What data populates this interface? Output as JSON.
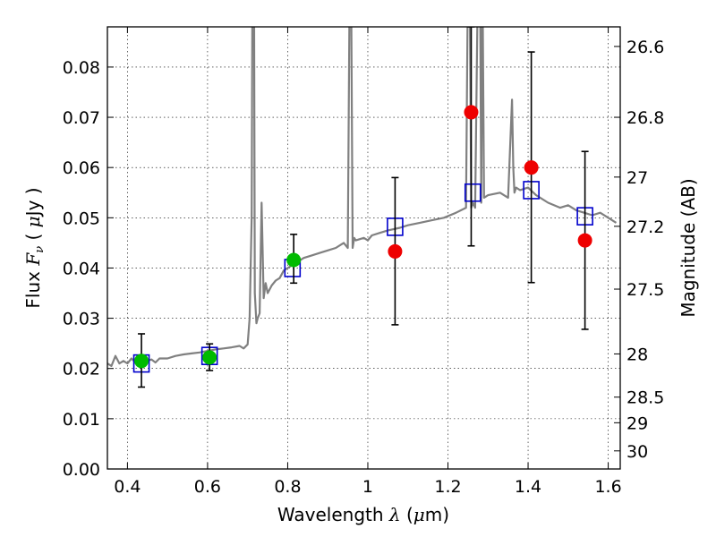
{
  "chart_data": {
    "type": "scatter",
    "title": "",
    "xlabel_text": "Wavelength",
    "xlabel_symbol": "λ",
    "xlabel_unit_prefix": " (",
    "xlabel_unit_mu": "μ",
    "xlabel_unit": "m)",
    "ylabel_text": "Flux",
    "ylabel_symbol": "F",
    "ylabel_symbol_sub": "ν",
    "ylabel_unit_prefix": "  ( ",
    "ylabel_unit_mu": "μ",
    "ylabel_unit": "Jy )",
    "y2label": "Magnitude (AB)",
    "xlim": [
      0.35,
      1.63
    ],
    "ylim": [
      0.0,
      0.088
    ],
    "grid": true,
    "x_ticks": [
      0.4,
      0.6,
      0.8,
      1.0,
      1.2,
      1.4,
      1.6
    ],
    "x_tick_labels": [
      "0.4",
      "0.6",
      "0.8",
      "1",
      "1.2",
      "1.4",
      "1.6"
    ],
    "y_ticks": [
      0.0,
      0.01,
      0.02,
      0.03,
      0.04,
      0.05,
      0.06,
      0.07,
      0.08
    ],
    "y_tick_labels": [
      "0.00",
      "0.01",
      "0.02",
      "0.03",
      "0.04",
      "0.05",
      "0.06",
      "0.07",
      "0.08"
    ],
    "y2_ticks": [
      {
        "label": "26.6",
        "flux": 0.0841
      },
      {
        "label": "26.8",
        "flux": 0.07
      },
      {
        "label": "27",
        "flux": 0.0581
      },
      {
        "label": "27.2",
        "flux": 0.0483
      },
      {
        "label": "27.5",
        "flux": 0.0358
      },
      {
        "label": "28",
        "flux": 0.0229
      },
      {
        "label": "28.5",
        "flux": 0.0143
      },
      {
        "label": "29",
        "flux": 0.0092
      },
      {
        "label": "30",
        "flux": 0.0036
      }
    ],
    "series": [
      {
        "kind": "line",
        "color": "#808080",
        "x": [
          0.35,
          0.36,
          0.37,
          0.38,
          0.39,
          0.4,
          0.41,
          0.42,
          0.43,
          0.44,
          0.45,
          0.46,
          0.47,
          0.48,
          0.5,
          0.52,
          0.54,
          0.56,
          0.58,
          0.6,
          0.62,
          0.64,
          0.66,
          0.68,
          0.69,
          0.7,
          0.705,
          0.71,
          0.712,
          0.716,
          0.718,
          0.722,
          0.725,
          0.73,
          0.735,
          0.74,
          0.745,
          0.75,
          0.76,
          0.77,
          0.78,
          0.79,
          0.8,
          0.82,
          0.84,
          0.86,
          0.88,
          0.9,
          0.92,
          0.94,
          0.95,
          0.955,
          0.958,
          0.962,
          0.966,
          0.97,
          0.99,
          1.0,
          1.01,
          1.03,
          1.05,
          1.08,
          1.1,
          1.13,
          1.16,
          1.19,
          1.22,
          1.245,
          1.25,
          1.254,
          1.258,
          1.262,
          1.268,
          1.275,
          1.28,
          1.283,
          1.286,
          1.29,
          1.3,
          1.33,
          1.35,
          1.36,
          1.363,
          1.366,
          1.37,
          1.38,
          1.4,
          1.42,
          1.45,
          1.48,
          1.5,
          1.52,
          1.54,
          1.56,
          1.58,
          1.6,
          1.62
        ],
        "y": [
          0.021,
          0.0205,
          0.0225,
          0.021,
          0.0215,
          0.021,
          0.022,
          0.0212,
          0.0218,
          0.021,
          0.0215,
          0.0218,
          0.0212,
          0.022,
          0.022,
          0.0225,
          0.0228,
          0.023,
          0.0232,
          0.0235,
          0.0238,
          0.024,
          0.0242,
          0.0245,
          0.024,
          0.0248,
          0.03,
          0.05,
          0.1,
          0.1,
          0.035,
          0.029,
          0.03,
          0.031,
          0.053,
          0.034,
          0.037,
          0.035,
          0.0365,
          0.0375,
          0.038,
          0.0395,
          0.04,
          0.041,
          0.042,
          0.0425,
          0.043,
          0.0435,
          0.044,
          0.045,
          0.044,
          0.1,
          0.1,
          0.044,
          0.046,
          0.0455,
          0.046,
          0.0455,
          0.0465,
          0.047,
          0.0475,
          0.048,
          0.0485,
          0.049,
          0.0495,
          0.05,
          0.051,
          0.052,
          0.1,
          0.1,
          0.052,
          0.053,
          0.052,
          0.1,
          0.1,
          0.053,
          0.1,
          0.054,
          0.0545,
          0.055,
          0.054,
          0.0735,
          0.06,
          0.055,
          0.056,
          0.0555,
          0.056,
          0.0545,
          0.053,
          0.052,
          0.0525,
          0.0515,
          0.051,
          0.0505,
          0.051,
          0.05,
          0.049
        ]
      },
      {
        "kind": "markers",
        "marker": "open-square",
        "color": "#0000cc",
        "x": [
          0.435,
          0.605,
          0.812,
          1.068,
          1.262,
          1.408,
          1.542
        ],
        "y": [
          0.021,
          0.0225,
          0.04,
          0.0482,
          0.055,
          0.0555,
          0.0503
        ]
      },
      {
        "kind": "markers",
        "marker": "filled-circle",
        "color": "#00bb00",
        "x": [
          0.435,
          0.605,
          0.815
        ],
        "y": [
          0.0215,
          0.0222,
          0.0416
        ],
        "yerr_low": [
          0.0163,
          0.0196,
          0.037
        ],
        "yerr_high": [
          0.0269,
          0.0249,
          0.0467
        ]
      },
      {
        "kind": "markers",
        "marker": "filled-circle",
        "color": "#ee0000",
        "x": [
          1.068,
          1.258,
          1.408,
          1.542
        ],
        "y": [
          0.0433,
          0.071,
          0.06,
          0.0455
        ],
        "yerr_low": [
          0.0287,
          0.0444,
          0.0371,
          0.0278
        ],
        "yerr_high": [
          0.058,
          0.088,
          0.083,
          0.0632
        ]
      }
    ]
  }
}
